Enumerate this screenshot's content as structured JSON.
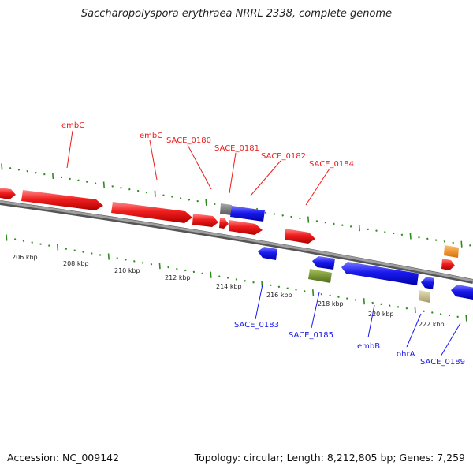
{
  "title": "Saccharopolyspora erythraea NRRL 2338, complete genome",
  "footer": {
    "accession": "Accession: NC_009142",
    "summary": "Topology: circular; Length: 8,212,805 bp; Genes: 7,259"
  },
  "colors": {
    "forward": "#ee1c1c",
    "reverse": "#1a1aee",
    "backbone": "#8a8a8a",
    "ticks": "#2e8b1e",
    "gray_feature": "#777777",
    "olive_feature": "#6f8f2a",
    "tan_feature": "#c8bf8a",
    "orange_feature": "#f0901a"
  },
  "ruler": {
    "labels": [
      "206 kbp",
      "208 kbp",
      "210 kbp",
      "212 kbp",
      "214 kbp",
      "216 kbp",
      "218 kbp",
      "220 kbp",
      "222 kbp"
    ]
  },
  "genes_top": [
    "embC",
    "embC",
    "SACE_0180",
    "SACE_0181",
    "SACE_0182",
    "SACE_0184"
  ],
  "genes_bottom": [
    "SACE_0183",
    "SACE_0185",
    "embB",
    "ohrA",
    "SACE_0189"
  ]
}
